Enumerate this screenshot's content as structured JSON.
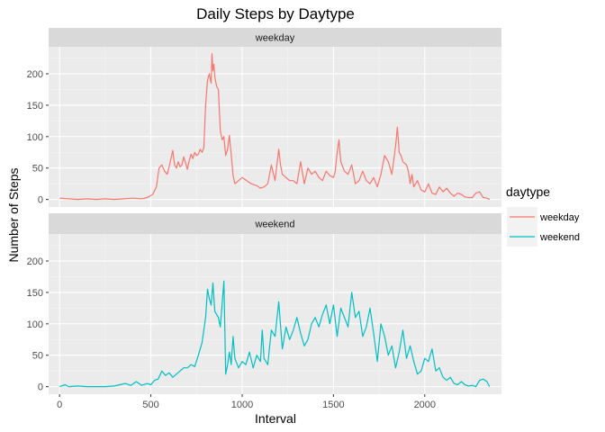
{
  "chart_data": {
    "type": "line",
    "title": "Daily Steps by Daytype",
    "xlabel": "Interval",
    "ylabel": "Number of Steps",
    "xlim": [
      -60,
      2420
    ],
    "ylim": [
      -12,
      243
    ],
    "x_ticks": [
      0,
      500,
      1000,
      1500,
      2000
    ],
    "x_tick_labels": [
      "0",
      "500",
      "1000",
      "1500",
      "2000"
    ],
    "y_ticks": [
      0,
      50,
      100,
      150,
      200
    ],
    "y_tick_labels": [
      "0",
      "50",
      "100",
      "150",
      "200"
    ],
    "grid": true,
    "facets": [
      "weekday",
      "weekend"
    ],
    "legend": {
      "title": "daytype",
      "placement": "right"
    },
    "series": [
      {
        "name": "weekday",
        "color": "#F8766D",
        "x": [
          0,
          50,
          100,
          150,
          200,
          250,
          300,
          350,
          400,
          450,
          480,
          510,
          530,
          545,
          560,
          575,
          590,
          600,
          610,
          620,
          630,
          640,
          650,
          660,
          670,
          680,
          690,
          700,
          710,
          720,
          730,
          740,
          750,
          760,
          770,
          780,
          790,
          800,
          810,
          820,
          830,
          835,
          840,
          845,
          850,
          860,
          870,
          880,
          890,
          900,
          910,
          920,
          930,
          940,
          950,
          960,
          1000,
          1050,
          1080,
          1100,
          1120,
          1140,
          1160,
          1180,
          1200,
          1210,
          1220,
          1240,
          1260,
          1280,
          1300,
          1320,
          1340,
          1360,
          1380,
          1400,
          1420,
          1440,
          1460,
          1480,
          1500,
          1510,
          1520,
          1530,
          1540,
          1560,
          1580,
          1600,
          1620,
          1640,
          1660,
          1680,
          1700,
          1720,
          1740,
          1760,
          1780,
          1800,
          1820,
          1840,
          1850,
          1860,
          1870,
          1880,
          1900,
          1910,
          1920,
          1930,
          1940,
          1960,
          1980,
          2000,
          2020,
          2040,
          2060,
          2080,
          2100,
          2120,
          2140,
          2160,
          2180,
          2200,
          2220,
          2240,
          2260,
          2280,
          2300,
          2320,
          2340,
          2355
        ],
        "y": [
          2,
          1,
          0,
          1,
          0,
          1,
          0,
          1,
          2,
          1,
          3,
          8,
          20,
          50,
          55,
          45,
          40,
          52,
          65,
          78,
          55,
          50,
          60,
          52,
          55,
          68,
          58,
          48,
          62,
          72,
          65,
          75,
          70,
          72,
          80,
          75,
          82,
          150,
          190,
          200,
          185,
          232,
          205,
          215,
          195,
          180,
          175,
          110,
          95,
          100,
          70,
          80,
          102,
          72,
          38,
          25,
          35,
          25,
          22,
          18,
          20,
          25,
          55,
          30,
          80,
          55,
          40,
          35,
          30,
          30,
          25,
          60,
          25,
          50,
          40,
          45,
          35,
          30,
          45,
          38,
          35,
          45,
          75,
          95,
          60,
          45,
          40,
          55,
          25,
          30,
          45,
          30,
          25,
          35,
          20,
          40,
          70,
          60,
          40,
          85,
          115,
          75,
          70,
          60,
          55,
          45,
          25,
          40,
          20,
          30,
          15,
          12,
          25,
          10,
          8,
          20,
          12,
          18,
          10,
          5,
          10,
          8,
          4,
          3,
          3,
          10,
          12,
          3,
          2,
          0
        ]
      },
      {
        "name": "weekend",
        "color": "#00BFC4",
        "x": [
          0,
          30,
          50,
          100,
          150,
          200,
          250,
          300,
          330,
          360,
          390,
          420,
          450,
          480,
          500,
          520,
          540,
          560,
          580,
          600,
          620,
          640,
          660,
          680,
          700,
          720,
          740,
          760,
          780,
          800,
          810,
          820,
          830,
          840,
          850,
          860,
          870,
          880,
          900,
          910,
          920,
          930,
          940,
          950,
          960,
          980,
          1000,
          1020,
          1040,
          1060,
          1080,
          1100,
          1110,
          1120,
          1140,
          1160,
          1180,
          1200,
          1220,
          1240,
          1260,
          1280,
          1300,
          1320,
          1340,
          1360,
          1380,
          1400,
          1420,
          1440,
          1460,
          1480,
          1500,
          1520,
          1540,
          1560,
          1580,
          1600,
          1620,
          1640,
          1660,
          1680,
          1700,
          1720,
          1740,
          1760,
          1780,
          1800,
          1820,
          1840,
          1860,
          1880,
          1900,
          1920,
          1940,
          1960,
          1980,
          2000,
          2020,
          2040,
          2060,
          2080,
          2100,
          2120,
          2140,
          2160,
          2180,
          2200,
          2220,
          2240,
          2260,
          2280,
          2300,
          2320,
          2340,
          2355
        ],
        "y": [
          0,
          3,
          0,
          1,
          0,
          0,
          0,
          1,
          3,
          5,
          2,
          8,
          2,
          5,
          3,
          10,
          12,
          25,
          18,
          22,
          15,
          20,
          25,
          30,
          30,
          35,
          32,
          50,
          70,
          110,
          155,
          140,
          130,
          165,
          120,
          115,
          110,
          95,
          168,
          20,
          35,
          55,
          35,
          80,
          45,
          30,
          40,
          35,
          55,
          30,
          50,
          40,
          90,
          45,
          35,
          90,
          80,
          135,
          60,
          95,
          75,
          90,
          110,
          85,
          65,
          75,
          100,
          110,
          95,
          115,
          130,
          100,
          130,
          80,
          125,
          110,
          95,
          150,
          110,
          120,
          80,
          95,
          125,
          85,
          40,
          100,
          80,
          50,
          65,
          30,
          55,
          90,
          45,
          65,
          40,
          20,
          25,
          45,
          40,
          60,
          25,
          30,
          15,
          10,
          15,
          5,
          3,
          8,
          3,
          1,
          2,
          0,
          10,
          12,
          8,
          0
        ]
      }
    ]
  }
}
